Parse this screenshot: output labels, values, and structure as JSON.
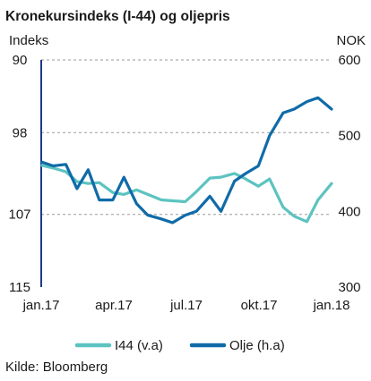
{
  "chart_data": {
    "type": "line",
    "title": "Kronekursindeks (I-44) og oljepris",
    "ylabel_left": "Indeks",
    "ylabel_right": "NOK",
    "left_axis": {
      "ticks": [
        "90",
        "98",
        "107",
        "115"
      ],
      "lim": [
        90,
        115
      ],
      "inverted": true
    },
    "right_axis": {
      "ticks": [
        "600",
        "500",
        "400",
        "300"
      ],
      "lim": [
        300,
        600
      ]
    },
    "x_ticks": [
      "jan.17",
      "apr.17",
      "jul.17",
      "okt.17",
      "jan.18"
    ],
    "x_range": [
      "2017-01-01",
      "2018-01-01"
    ],
    "grid": "horizontal dashed",
    "legend_position": "bottom",
    "source": "Kilde: Bloomberg",
    "series": [
      {
        "name": "I44 (v.a)",
        "axis": "left",
        "color": "#5cc3c0",
        "points": [
          [
            "2017-01-02",
            101.6
          ],
          [
            "2017-01-16",
            101.9
          ],
          [
            "2017-02-01",
            102.3
          ],
          [
            "2017-02-15",
            103.4
          ],
          [
            "2017-03-01",
            103.6
          ],
          [
            "2017-03-15",
            103.5
          ],
          [
            "2017-04-01",
            104.6
          ],
          [
            "2017-04-15",
            104.8
          ],
          [
            "2017-05-01",
            104.3
          ],
          [
            "2017-05-15",
            104.8
          ],
          [
            "2017-06-01",
            105.4
          ],
          [
            "2017-06-15",
            105.5
          ],
          [
            "2017-07-01",
            105.6
          ],
          [
            "2017-07-15",
            104.5
          ],
          [
            "2017-08-01",
            103.0
          ],
          [
            "2017-08-15",
            102.9
          ],
          [
            "2017-09-01",
            102.5
          ],
          [
            "2017-09-15",
            103.1
          ],
          [
            "2017-10-01",
            103.9
          ],
          [
            "2017-10-15",
            103.1
          ],
          [
            "2017-11-01",
            106.2
          ],
          [
            "2017-11-15",
            107.2
          ],
          [
            "2017-12-01",
            107.8
          ],
          [
            "2017-12-15",
            105.4
          ],
          [
            "2018-01-01",
            103.6
          ]
        ]
      },
      {
        "name": "Olje (h.a)",
        "axis": "right",
        "color": "#0f6ba8",
        "points": [
          [
            "2017-01-02",
            465
          ],
          [
            "2017-01-16",
            460
          ],
          [
            "2017-02-01",
            462
          ],
          [
            "2017-02-15",
            430
          ],
          [
            "2017-03-01",
            455
          ],
          [
            "2017-03-15",
            415
          ],
          [
            "2017-04-01",
            415
          ],
          [
            "2017-04-15",
            445
          ],
          [
            "2017-05-01",
            410
          ],
          [
            "2017-05-15",
            395
          ],
          [
            "2017-06-01",
            390
          ],
          [
            "2017-06-15",
            385
          ],
          [
            "2017-07-01",
            395
          ],
          [
            "2017-07-15",
            400
          ],
          [
            "2017-08-01",
            420
          ],
          [
            "2017-08-15",
            400
          ],
          [
            "2017-09-01",
            440
          ],
          [
            "2017-09-15",
            450
          ],
          [
            "2017-10-01",
            460
          ],
          [
            "2017-10-15",
            500
          ],
          [
            "2017-11-01",
            530
          ],
          [
            "2017-11-15",
            535
          ],
          [
            "2017-12-01",
            545
          ],
          [
            "2017-12-15",
            550
          ],
          [
            "2018-01-01",
            535
          ]
        ]
      }
    ]
  }
}
